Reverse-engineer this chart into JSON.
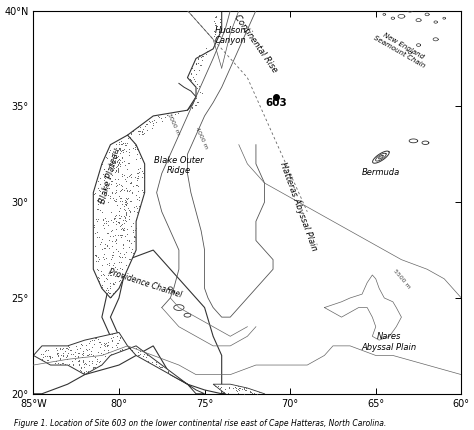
{
  "title": "Figure 1. Location of Site 603 on the lower continental rise east of Cape Hatteras, North Carolina.",
  "xlim": [
    -85,
    -60
  ],
  "ylim": [
    20,
    40
  ],
  "xticks": [
    -85,
    -80,
    -75,
    -70,
    -65,
    -60
  ],
  "yticks": [
    20,
    25,
    30,
    35,
    40
  ],
  "xlabel_labels": [
    "85°W",
    "80°",
    "75°",
    "70°",
    "65°",
    "60°"
  ],
  "ylabel_labels": [
    "20°",
    "25°",
    "30°",
    "35°",
    "40°N"
  ],
  "site603_lon": -70.8,
  "site603_lat": 35.5,
  "water_color": "#ffffff",
  "land_color": "#e8e8e8",
  "land_edge": "#333333",
  "label_fontsize": 6,
  "title_fontsize": 6
}
